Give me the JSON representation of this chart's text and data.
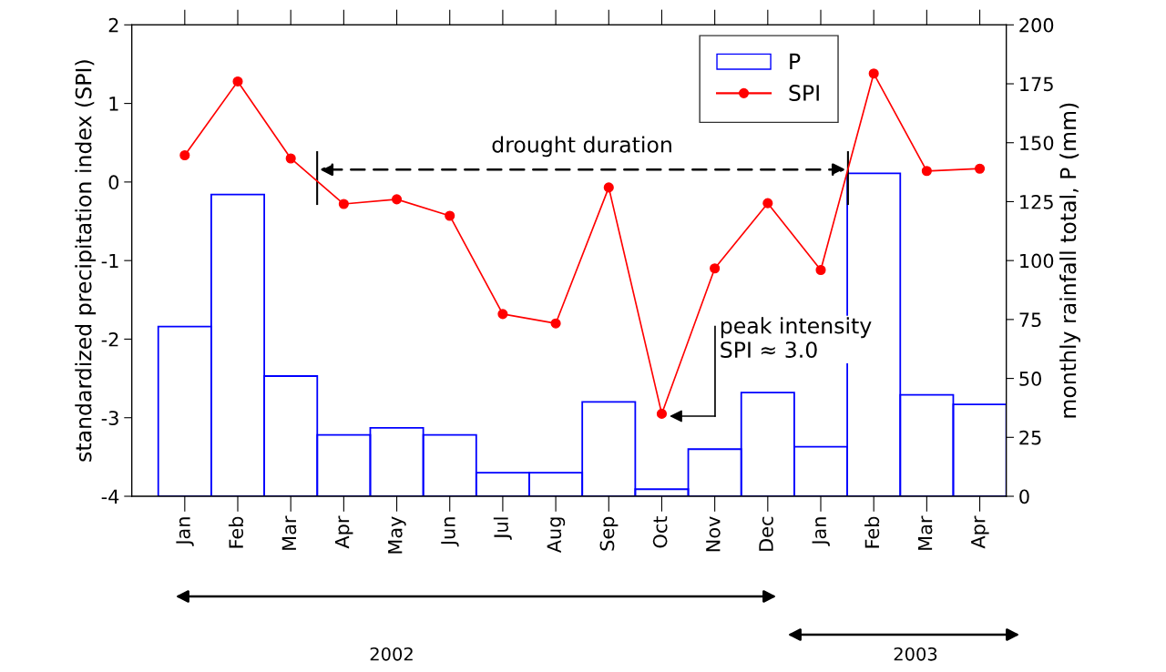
{
  "chart_data": {
    "type": "bar",
    "categories": [
      "Jan",
      "Feb",
      "Mar",
      "Apr",
      "May",
      "Jun",
      "Jul",
      "Aug",
      "Sep",
      "Oct",
      "Nov",
      "Dec",
      "Jan",
      "Feb",
      "Mar",
      "Apr"
    ],
    "series": [
      {
        "name": "P",
        "axis": "y2",
        "color": "#0000ff",
        "values": [
          72,
          128,
          51,
          26,
          29,
          26,
          10,
          10,
          40,
          3,
          20,
          44,
          21,
          137,
          43,
          39
        ]
      },
      {
        "name": "SPI",
        "type": "line",
        "color": "#ff0000",
        "marker": "circle",
        "line_style": "solid",
        "values": [
          0.34,
          1.28,
          0.3,
          -0.28,
          -0.22,
          -0.43,
          -1.68,
          -1.8,
          -0.07,
          -2.95,
          -1.1,
          -0.27,
          -1.12,
          1.38,
          0.14,
          0.17
        ]
      }
    ],
    "ylabel": "standardized precipitation index (SPI)",
    "y2label": "monthly rainfall total, P (mm)",
    "ylim": [
      -4,
      2
    ],
    "yticks": [
      -4,
      -3,
      -2,
      -1,
      0,
      1,
      2
    ],
    "y2lim": [
      0,
      200
    ],
    "y2ticks": [
      0,
      25,
      50,
      75,
      100,
      125,
      150,
      175,
      200
    ],
    "annotations": [
      "drought duration",
      "peak intensity\nSPI ≈ 3.0",
      "2002",
      "2003"
    ],
    "legend": "top right",
    "grid": false
  }
}
